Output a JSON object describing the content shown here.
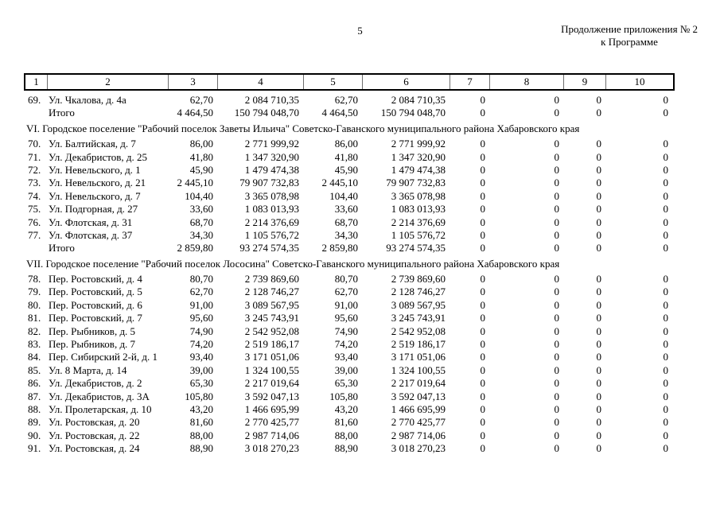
{
  "header": {
    "page_number": "5",
    "continuation_line1": "Продолжение приложения № 2",
    "continuation_line2": "к Программе"
  },
  "table": {
    "column_headers": [
      "1",
      "2",
      "3",
      "4",
      "5",
      "6",
      "7",
      "8",
      "9",
      "10"
    ],
    "rows": [
      {
        "type": "item",
        "num": "69.",
        "address": "Ул. Чкалова, д. 4а",
        "values": [
          "62,70",
          "2 084 710,35",
          "62,70",
          "2 084 710,35",
          "0",
          "0",
          "0",
          "0"
        ]
      },
      {
        "type": "total",
        "label": "Итого",
        "values": [
          "4 464,50",
          "150 794 048,70",
          "4 464,50",
          "150 794 048,70",
          "0",
          "0",
          "0",
          "0"
        ]
      },
      {
        "type": "section",
        "label": "VI. Городское поселение \"Рабочий поселок Заветы Ильича\" Советско-Гаванского муниципального района Хабаровского края"
      },
      {
        "type": "item",
        "num": "70.",
        "address": "Ул. Балтийская, д. 7",
        "values": [
          "86,00",
          "2 771 999,92",
          "86,00",
          "2 771 999,92",
          "0",
          "0",
          "0",
          "0"
        ]
      },
      {
        "type": "item",
        "num": "71.",
        "address": "Ул. Декабристов, д. 25",
        "values": [
          "41,80",
          "1 347 320,90",
          "41,80",
          "1 347 320,90",
          "0",
          "0",
          "0",
          "0"
        ]
      },
      {
        "type": "item",
        "num": "72.",
        "address": "Ул. Невельского, д. 1",
        "values": [
          "45,90",
          "1 479 474,38",
          "45,90",
          "1 479 474,38",
          "0",
          "0",
          "0",
          "0"
        ]
      },
      {
        "type": "item",
        "num": "73.",
        "address": "Ул. Невельского, д. 21",
        "values": [
          "2 445,10",
          "79 907 732,83",
          "2 445,10",
          "79 907 732,83",
          "0",
          "0",
          "0",
          "0"
        ]
      },
      {
        "type": "item",
        "num": "74.",
        "address": "Ул. Невельского, д. 7",
        "values": [
          "104,40",
          "3 365 078,98",
          "104,40",
          "3 365 078,98",
          "0",
          "0",
          "0",
          "0"
        ]
      },
      {
        "type": "item",
        "num": "75.",
        "address": "Ул. Подгорная, д. 27",
        "values": [
          "33,60",
          "1 083 013,93",
          "33,60",
          "1 083 013,93",
          "0",
          "0",
          "0",
          "0"
        ]
      },
      {
        "type": "item",
        "num": "76.",
        "address": "Ул. Флотская, д. 31",
        "values": [
          "68,70",
          "2 214 376,69",
          "68,70",
          "2 214 376,69",
          "0",
          "0",
          "0",
          "0"
        ]
      },
      {
        "type": "item",
        "num": "77.",
        "address": "Ул. Флотская, д. 37",
        "values": [
          "34,30",
          "1 105 576,72",
          "34,30",
          "1 105 576,72",
          "0",
          "0",
          "0",
          "0"
        ]
      },
      {
        "type": "total",
        "label": "Итого",
        "values": [
          "2 859,80",
          "93 274 574,35",
          "2 859,80",
          "93 274 574,35",
          "0",
          "0",
          "0",
          "0"
        ]
      },
      {
        "type": "section",
        "label": "VII. Городское поселение \"Рабочий поселок Лососина\" Советско-Гаванского муниципального района Хабаровского края"
      },
      {
        "type": "item",
        "num": "78.",
        "address": "Пер. Ростовский, д. 4",
        "values": [
          "80,70",
          "2 739 869,60",
          "80,70",
          "2 739 869,60",
          "0",
          "0",
          "0",
          "0"
        ]
      },
      {
        "type": "item",
        "num": "79.",
        "address": "Пер. Ростовский, д. 5",
        "values": [
          "62,70",
          "2 128 746,27",
          "62,70",
          "2 128 746,27",
          "0",
          "0",
          "0",
          "0"
        ]
      },
      {
        "type": "item",
        "num": "80.",
        "address": "Пер. Ростовский, д. 6",
        "values": [
          "91,00",
          "3 089 567,95",
          "91,00",
          "3 089 567,95",
          "0",
          "0",
          "0",
          "0"
        ]
      },
      {
        "type": "item",
        "num": "81.",
        "address": "Пер. Ростовский, д. 7",
        "values": [
          "95,60",
          "3 245 743,91",
          "95,60",
          "3 245 743,91",
          "0",
          "0",
          "0",
          "0"
        ]
      },
      {
        "type": "item",
        "num": "82.",
        "address": "Пер. Рыбников, д. 5",
        "values": [
          "74,90",
          "2 542 952,08",
          "74,90",
          "2 542 952,08",
          "0",
          "0",
          "0",
          "0"
        ]
      },
      {
        "type": "item",
        "num": "83.",
        "address": "Пер. Рыбников, д. 7",
        "values": [
          "74,20",
          "2 519 186,17",
          "74,20",
          "2 519 186,17",
          "0",
          "0",
          "0",
          "0"
        ]
      },
      {
        "type": "item",
        "num": "84.",
        "address": "Пер. Сибирский 2-й, д. 1",
        "values": [
          "93,40",
          "3 171 051,06",
          "93,40",
          "3 171 051,06",
          "0",
          "0",
          "0",
          "0"
        ]
      },
      {
        "type": "item",
        "num": "85.",
        "address": "Ул. 8 Марта, д. 14",
        "values": [
          "39,00",
          "1 324 100,55",
          "39,00",
          "1 324 100,55",
          "0",
          "0",
          "0",
          "0"
        ]
      },
      {
        "type": "item",
        "num": "86.",
        "address": "Ул. Декабристов, д. 2",
        "values": [
          "65,30",
          "2 217 019,64",
          "65,30",
          "2 217 019,64",
          "0",
          "0",
          "0",
          "0"
        ]
      },
      {
        "type": "item",
        "num": "87.",
        "address": "Ул. Декабристов, д. 3А",
        "values": [
          "105,80",
          "3 592 047,13",
          "105,80",
          "3 592 047,13",
          "0",
          "0",
          "0",
          "0"
        ]
      },
      {
        "type": "item",
        "num": "88.",
        "address": "Ул. Пролетарская, д. 10",
        "values": [
          "43,20",
          "1 466 695,99",
          "43,20",
          "1 466 695,99",
          "0",
          "0",
          "0",
          "0"
        ]
      },
      {
        "type": "item",
        "num": "89.",
        "address": "Ул. Ростовская, д. 20",
        "values": [
          "81,60",
          "2 770 425,77",
          "81,60",
          "2 770 425,77",
          "0",
          "0",
          "0",
          "0"
        ]
      },
      {
        "type": "item",
        "num": "90.",
        "address": "Ул. Ростовская, д. 22",
        "values": [
          "88,00",
          "2 987 714,06",
          "88,00",
          "2 987 714,06",
          "0",
          "0",
          "0",
          "0"
        ]
      },
      {
        "type": "item",
        "num": "91.",
        "address": "Ул. Ростовская, д. 24",
        "values": [
          "88,90",
          "3 018 270,23",
          "88,90",
          "3 018 270,23",
          "0",
          "0",
          "0",
          "0"
        ]
      }
    ]
  }
}
